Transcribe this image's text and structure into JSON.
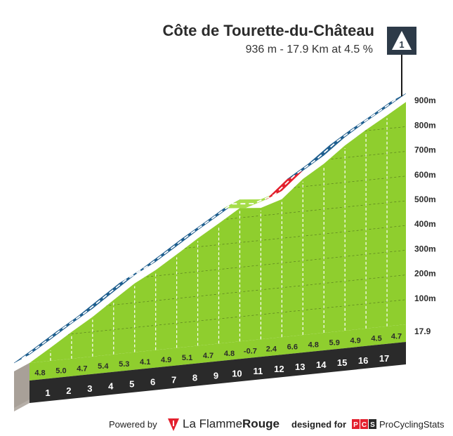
{
  "header": {
    "title": "Côte de Tourette-du-Château",
    "subtitle": "936 m - 17.9 Km at 4.5 %",
    "marker_label": "1"
  },
  "footer": {
    "powered_by": "Powered by",
    "brand_main": "La Flamme",
    "brand_bold": "Rouge",
    "designed_for": "designed for",
    "pcs_logo_text": "PCS",
    "pcs_name": "ProCyclingStats"
  },
  "colors": {
    "green": "#8fce2e",
    "blue_band": "#1f5f8f",
    "red_band": "#e3202e",
    "light_green_band": "#a6dd4a",
    "base_dark": "#2a2a2a",
    "base_side": "#a8a098",
    "badge": "#2d3a48"
  },
  "icons": {
    "marker": "summit-triangle-icon",
    "flame": "flame-rouge-icon",
    "pcs": "pcs-logo-icon"
  },
  "chart_data": {
    "type": "area",
    "title": "Côte de Tourette-du-Château",
    "subtitle": "936 m - 17.9 Km at 4.5 %",
    "unit": "m",
    "x_unit": "km",
    "end_km_label": "17.9",
    "ylim": [
      0,
      900
    ],
    "y_ticks": [
      100,
      200,
      300,
      400,
      500,
      600,
      700,
      800,
      900
    ],
    "y_tick_labels": [
      "100m",
      "200m",
      "300m",
      "400m",
      "500m",
      "600m",
      "700m",
      "800m",
      "900m"
    ],
    "km_labels": [
      "1",
      "2",
      "3",
      "4",
      "5",
      "6",
      "7",
      "8",
      "9",
      "10",
      "11",
      "12",
      "13",
      "14",
      "15",
      "16",
      "17"
    ],
    "gradients": [
      4.8,
      5.0,
      4.7,
      5.4,
      5.3,
      4.1,
      4.9,
      5.1,
      4.7,
      4.8,
      -0.7,
      2.4,
      6.6,
      4.8,
      5.9,
      4.9,
      4.5,
      4.7
    ],
    "gradient_labels": [
      "4.8",
      "5.0",
      "4.7",
      "5.4",
      "5.3",
      "4.1",
      "4.9",
      "5.1",
      "4.7",
      "4.8",
      "-0.7",
      "2.4",
      "6.6",
      "4.8",
      "5.9",
      "4.9",
      "4.5",
      "4.7"
    ],
    "grid": true,
    "summit_marker": "1"
  }
}
